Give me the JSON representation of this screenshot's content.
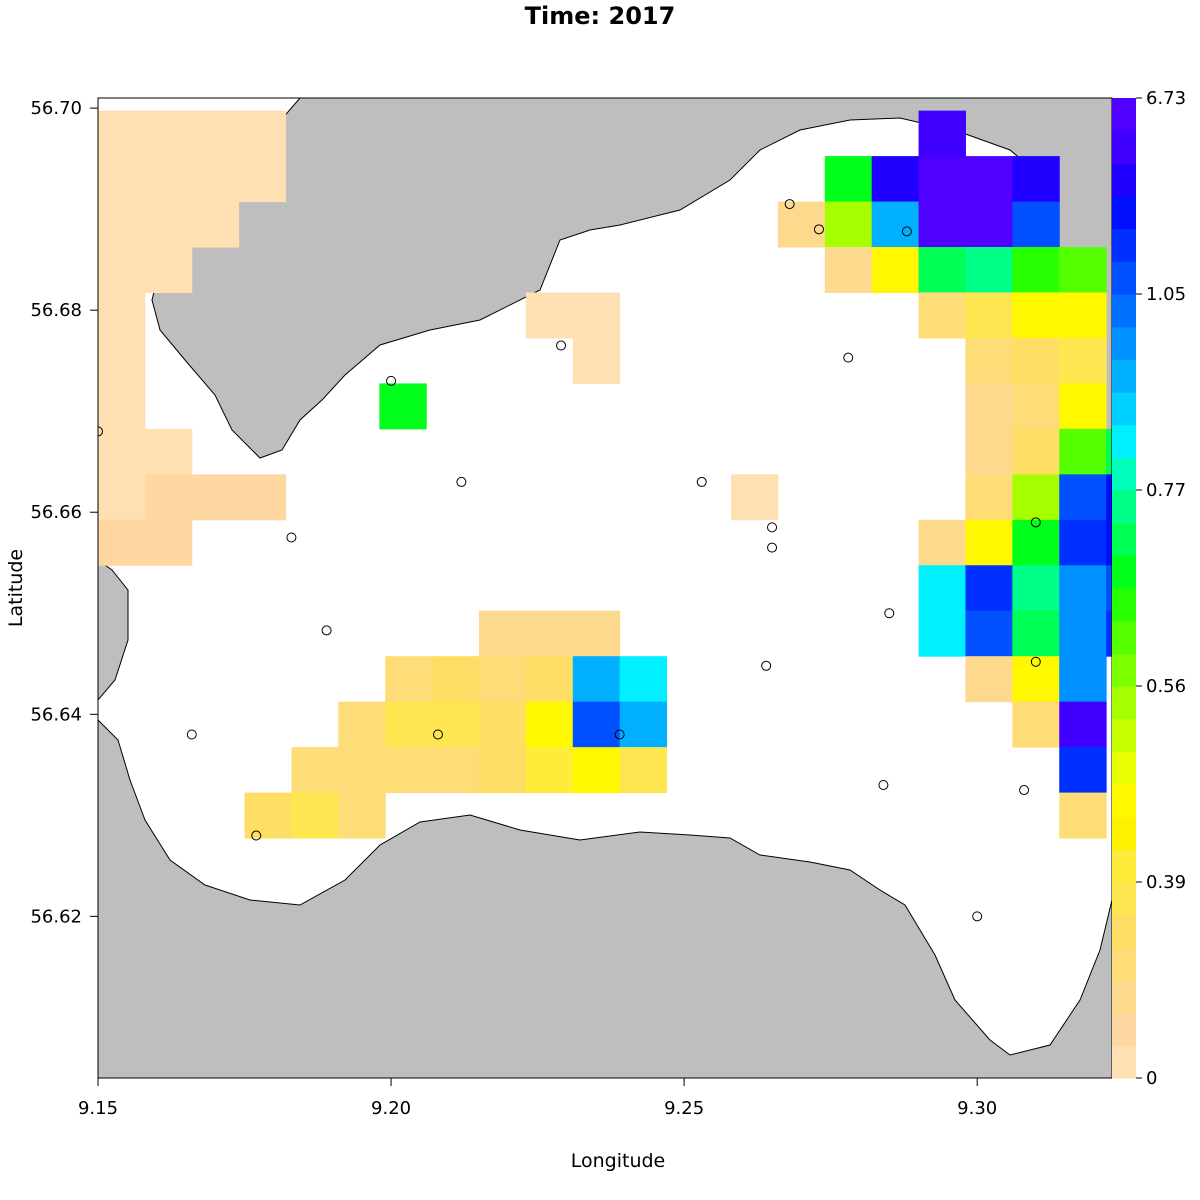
{
  "title": "Time: 2017",
  "xlabel": "Longitude",
  "ylabel": "Latitude",
  "chart_data": {
    "type": "heatmap",
    "x_ticks": [
      "9.15",
      "9.20",
      "9.25",
      "9.30"
    ],
    "y_ticks": [
      "56.62",
      "56.64",
      "56.66",
      "56.68",
      "56.70"
    ],
    "xlim": [
      9.15,
      9.323
    ],
    "ylim": [
      56.604,
      56.701
    ],
    "colorbar_labels": [
      "0",
      "0.39",
      "0.56",
      "0.77",
      "1.05",
      "6.73"
    ],
    "colorbar_colors": [
      "#ffe0b2",
      "#fed8a0",
      "#fdd98e",
      "#fedd78",
      "#fede64",
      "#fee650",
      "#fdec3a",
      "#fef200",
      "#fff800",
      "#e8ff00",
      "#c8ff00",
      "#a6ff00",
      "#7eff00",
      "#55ff00",
      "#28ff00",
      "#00ff1a",
      "#00ff55",
      "#00ff88",
      "#00ffbb",
      "#00f0ff",
      "#00d0ff",
      "#00b0ff",
      "#0090ff",
      "#0070ff",
      "#0050ff",
      "#0030ff",
      "#0010ff",
      "#2000ff",
      "#4000ff",
      "#5000ff"
    ],
    "land_color": "#bebebe",
    "water_color": "#ffffff",
    "cells": [
      {
        "lon": 9.154,
        "lat": 56.6975,
        "v": 0.02
      },
      {
        "lon": 9.154,
        "lat": 56.693,
        "v": 0.02
      },
      {
        "lon": 9.154,
        "lat": 56.6885,
        "v": 0.02
      },
      {
        "lon": 9.154,
        "lat": 56.684,
        "v": 0.02
      },
      {
        "lon": 9.154,
        "lat": 56.6795,
        "v": 0.02
      },
      {
        "lon": 9.154,
        "lat": 56.675,
        "v": 0.02
      },
      {
        "lon": 9.154,
        "lat": 56.6705,
        "v": 0.02
      },
      {
        "lon": 9.154,
        "lat": 56.666,
        "v": 0.02
      },
      {
        "lon": 9.154,
        "lat": 56.6615,
        "v": 0.02
      },
      {
        "lon": 9.162,
        "lat": 56.6975,
        "v": 0.02
      },
      {
        "lon": 9.162,
        "lat": 56.693,
        "v": 0.02
      },
      {
        "lon": 9.162,
        "lat": 56.6885,
        "v": 0.02
      },
      {
        "lon": 9.162,
        "lat": 56.684,
        "v": 0.02
      },
      {
        "lon": 9.17,
        "lat": 56.6975,
        "v": 0.02
      },
      {
        "lon": 9.17,
        "lat": 56.693,
        "v": 0.02
      },
      {
        "lon": 9.17,
        "lat": 56.6885,
        "v": 0.02
      },
      {
        "lon": 9.178,
        "lat": 56.6975,
        "v": 0.02
      },
      {
        "lon": 9.178,
        "lat": 56.693,
        "v": 0.02
      },
      {
        "lon": 9.162,
        "lat": 56.666,
        "v": 0.02
      },
      {
        "lon": 9.162,
        "lat": 56.6615,
        "v": 0.1
      },
      {
        "lon": 9.154,
        "lat": 56.657,
        "v": 0.1
      },
      {
        "lon": 9.162,
        "lat": 56.657,
        "v": 0.1
      },
      {
        "lon": 9.17,
        "lat": 56.6615,
        "v": 0.1
      },
      {
        "lon": 9.178,
        "lat": 56.6615,
        "v": 0.1
      },
      {
        "lon": 9.227,
        "lat": 56.6795,
        "v": 0.02
      },
      {
        "lon": 9.235,
        "lat": 56.6795,
        "v": 0.02
      },
      {
        "lon": 9.235,
        "lat": 56.675,
        "v": 0.02
      },
      {
        "lon": 9.202,
        "lat": 56.6705,
        "v": 0.7
      },
      {
        "lon": 9.262,
        "lat": 56.6615,
        "v": 0.02
      },
      {
        "lon": 9.219,
        "lat": 56.648,
        "v": 0.15
      },
      {
        "lon": 9.227,
        "lat": 56.648,
        "v": 0.15
      },
      {
        "lon": 9.235,
        "lat": 56.648,
        "v": 0.15
      },
      {
        "lon": 9.203,
        "lat": 56.6435,
        "v": 0.2
      },
      {
        "lon": 9.211,
        "lat": 56.6435,
        "v": 0.3
      },
      {
        "lon": 9.219,
        "lat": 56.6435,
        "v": 0.2
      },
      {
        "lon": 9.227,
        "lat": 56.6435,
        "v": 0.3
      },
      {
        "lon": 9.235,
        "lat": 56.6435,
        "v": 0.95
      },
      {
        "lon": 9.243,
        "lat": 56.6435,
        "v": 0.85
      },
      {
        "lon": 9.195,
        "lat": 56.639,
        "v": 0.2
      },
      {
        "lon": 9.203,
        "lat": 56.639,
        "v": 0.35
      },
      {
        "lon": 9.211,
        "lat": 56.639,
        "v": 0.35
      },
      {
        "lon": 9.219,
        "lat": 56.639,
        "v": 0.3
      },
      {
        "lon": 9.227,
        "lat": 56.639,
        "v": 0.45
      },
      {
        "lon": 9.235,
        "lat": 56.639,
        "v": 1.05
      },
      {
        "lon": 9.243,
        "lat": 56.639,
        "v": 0.95
      },
      {
        "lon": 9.187,
        "lat": 56.6345,
        "v": 0.2
      },
      {
        "lon": 9.195,
        "lat": 56.6345,
        "v": 0.2
      },
      {
        "lon": 9.203,
        "lat": 56.6345,
        "v": 0.2
      },
      {
        "lon": 9.211,
        "lat": 56.6345,
        "v": 0.25
      },
      {
        "lon": 9.219,
        "lat": 56.6345,
        "v": 0.3
      },
      {
        "lon": 9.227,
        "lat": 56.6345,
        "v": 0.4
      },
      {
        "lon": 9.235,
        "lat": 56.6345,
        "v": 0.45
      },
      {
        "lon": 9.243,
        "lat": 56.6345,
        "v": 0.35
      },
      {
        "lon": 9.179,
        "lat": 56.63,
        "v": 0.3
      },
      {
        "lon": 9.187,
        "lat": 56.63,
        "v": 0.35
      },
      {
        "lon": 9.195,
        "lat": 56.63,
        "v": 0.25
      },
      {
        "lon": 9.27,
        "lat": 56.6885,
        "v": 0.15
      },
      {
        "lon": 9.278,
        "lat": 56.693,
        "v": 0.7
      },
      {
        "lon": 9.286,
        "lat": 56.693,
        "v": 4.5
      },
      {
        "lon": 9.294,
        "lat": 56.693,
        "v": 6.0
      },
      {
        "lon": 9.302,
        "lat": 56.693,
        "v": 6.5
      },
      {
        "lon": 9.31,
        "lat": 56.693,
        "v": 4.5
      },
      {
        "lon": 9.294,
        "lat": 56.6975,
        "v": 5.5
      },
      {
        "lon": 9.278,
        "lat": 56.6885,
        "v": 0.55
      },
      {
        "lon": 9.286,
        "lat": 56.6885,
        "v": 0.95
      },
      {
        "lon": 9.294,
        "lat": 56.6885,
        "v": 6.0
      },
      {
        "lon": 9.302,
        "lat": 56.6885,
        "v": 6.5
      },
      {
        "lon": 9.31,
        "lat": 56.6885,
        "v": 1.1
      },
      {
        "lon": 9.278,
        "lat": 56.684,
        "v": 0.15
      },
      {
        "lon": 9.286,
        "lat": 56.684,
        "v": 0.45
      },
      {
        "lon": 9.294,
        "lat": 56.684,
        "v": 0.72
      },
      {
        "lon": 9.302,
        "lat": 56.684,
        "v": 0.75
      },
      {
        "lon": 9.31,
        "lat": 56.684,
        "v": 0.65
      },
      {
        "lon": 9.318,
        "lat": 56.684,
        "v": 0.6
      },
      {
        "lon": 9.294,
        "lat": 56.6795,
        "v": 0.2
      },
      {
        "lon": 9.302,
        "lat": 56.6795,
        "v": 0.35
      },
      {
        "lon": 9.31,
        "lat": 56.6795,
        "v": 0.45
      },
      {
        "lon": 9.318,
        "lat": 56.6795,
        "v": 0.45
      },
      {
        "lon": 9.302,
        "lat": 56.675,
        "v": 0.2
      },
      {
        "lon": 9.31,
        "lat": 56.675,
        "v": 0.3
      },
      {
        "lon": 9.318,
        "lat": 56.675,
        "v": 0.35
      },
      {
        "lon": 9.302,
        "lat": 56.6705,
        "v": 0.15
      },
      {
        "lon": 9.31,
        "lat": 56.6705,
        "v": 0.2
      },
      {
        "lon": 9.318,
        "lat": 56.6705,
        "v": 0.45
      },
      {
        "lon": 9.302,
        "lat": 56.666,
        "v": 0.15
      },
      {
        "lon": 9.31,
        "lat": 56.666,
        "v": 0.3
      },
      {
        "lon": 9.318,
        "lat": 56.666,
        "v": 0.62
      },
      {
        "lon": 9.326,
        "lat": 56.666,
        "v": 0.72
      },
      {
        "lon": 9.302,
        "lat": 56.6615,
        "v": 0.2
      },
      {
        "lon": 9.31,
        "lat": 56.6615,
        "v": 0.55
      },
      {
        "lon": 9.318,
        "lat": 56.6615,
        "v": 1.1
      },
      {
        "lon": 9.326,
        "lat": 56.6615,
        "v": 3.0
      },
      {
        "lon": 9.294,
        "lat": 56.657,
        "v": 0.15
      },
      {
        "lon": 9.302,
        "lat": 56.657,
        "v": 0.45
      },
      {
        "lon": 9.31,
        "lat": 56.657,
        "v": 0.7
      },
      {
        "lon": 9.318,
        "lat": 56.657,
        "v": 2.0
      },
      {
        "lon": 9.326,
        "lat": 56.657,
        "v": 3.0
      },
      {
        "lon": 9.294,
        "lat": 56.6525,
        "v": 0.85
      },
      {
        "lon": 9.302,
        "lat": 56.6525,
        "v": 2.0
      },
      {
        "lon": 9.31,
        "lat": 56.6525,
        "v": 0.75
      },
      {
        "lon": 9.318,
        "lat": 56.6525,
        "v": 1.0
      },
      {
        "lon": 9.326,
        "lat": 56.6525,
        "v": 1.2
      },
      {
        "lon": 9.294,
        "lat": 56.648,
        "v": 0.85
      },
      {
        "lon": 9.302,
        "lat": 56.648,
        "v": 1.1
      },
      {
        "lon": 9.31,
        "lat": 56.648,
        "v": 0.72
      },
      {
        "lon": 9.318,
        "lat": 56.648,
        "v": 1.0
      },
      {
        "lon": 9.326,
        "lat": 56.648,
        "v": 2.0
      },
      {
        "lon": 9.302,
        "lat": 56.6435,
        "v": 0.15
      },
      {
        "lon": 9.31,
        "lat": 56.6435,
        "v": 0.45
      },
      {
        "lon": 9.318,
        "lat": 56.6435,
        "v": 1.0
      },
      {
        "lon": 9.31,
        "lat": 56.639,
        "v": 0.25
      },
      {
        "lon": 9.318,
        "lat": 56.639,
        "v": 5.0
      },
      {
        "lon": 9.318,
        "lat": 56.6345,
        "v": 2.5
      },
      {
        "lon": 9.318,
        "lat": 56.63,
        "v": 0.2
      }
    ],
    "stations": [
      {
        "lon": 9.15,
        "lat": 56.668
      },
      {
        "lon": 9.2,
        "lat": 56.673
      },
      {
        "lon": 9.229,
        "lat": 56.6765
      },
      {
        "lon": 9.212,
        "lat": 56.663
      },
      {
        "lon": 9.183,
        "lat": 56.6575
      },
      {
        "lon": 9.189,
        "lat": 56.6483
      },
      {
        "lon": 9.166,
        "lat": 56.638
      },
      {
        "lon": 9.177,
        "lat": 56.628
      },
      {
        "lon": 9.208,
        "lat": 56.638
      },
      {
        "lon": 9.239,
        "lat": 56.638
      },
      {
        "lon": 9.253,
        "lat": 56.663
      },
      {
        "lon": 9.265,
        "lat": 56.6585
      },
      {
        "lon": 9.265,
        "lat": 56.6565
      },
      {
        "lon": 9.264,
        "lat": 56.6448
      },
      {
        "lon": 9.284,
        "lat": 56.633
      },
      {
        "lon": 9.285,
        "lat": 56.65
      },
      {
        "lon": 9.268,
        "lat": 56.6905
      },
      {
        "lon": 9.273,
        "lat": 56.688
      },
      {
        "lon": 9.288,
        "lat": 56.6878
      },
      {
        "lon": 9.278,
        "lat": 56.6753
      },
      {
        "lon": 9.31,
        "lat": 56.659
      },
      {
        "lon": 9.31,
        "lat": 56.6452
      },
      {
        "lon": 9.308,
        "lat": 56.6325
      },
      {
        "lon": 9.3,
        "lat": 56.62
      }
    ]
  }
}
